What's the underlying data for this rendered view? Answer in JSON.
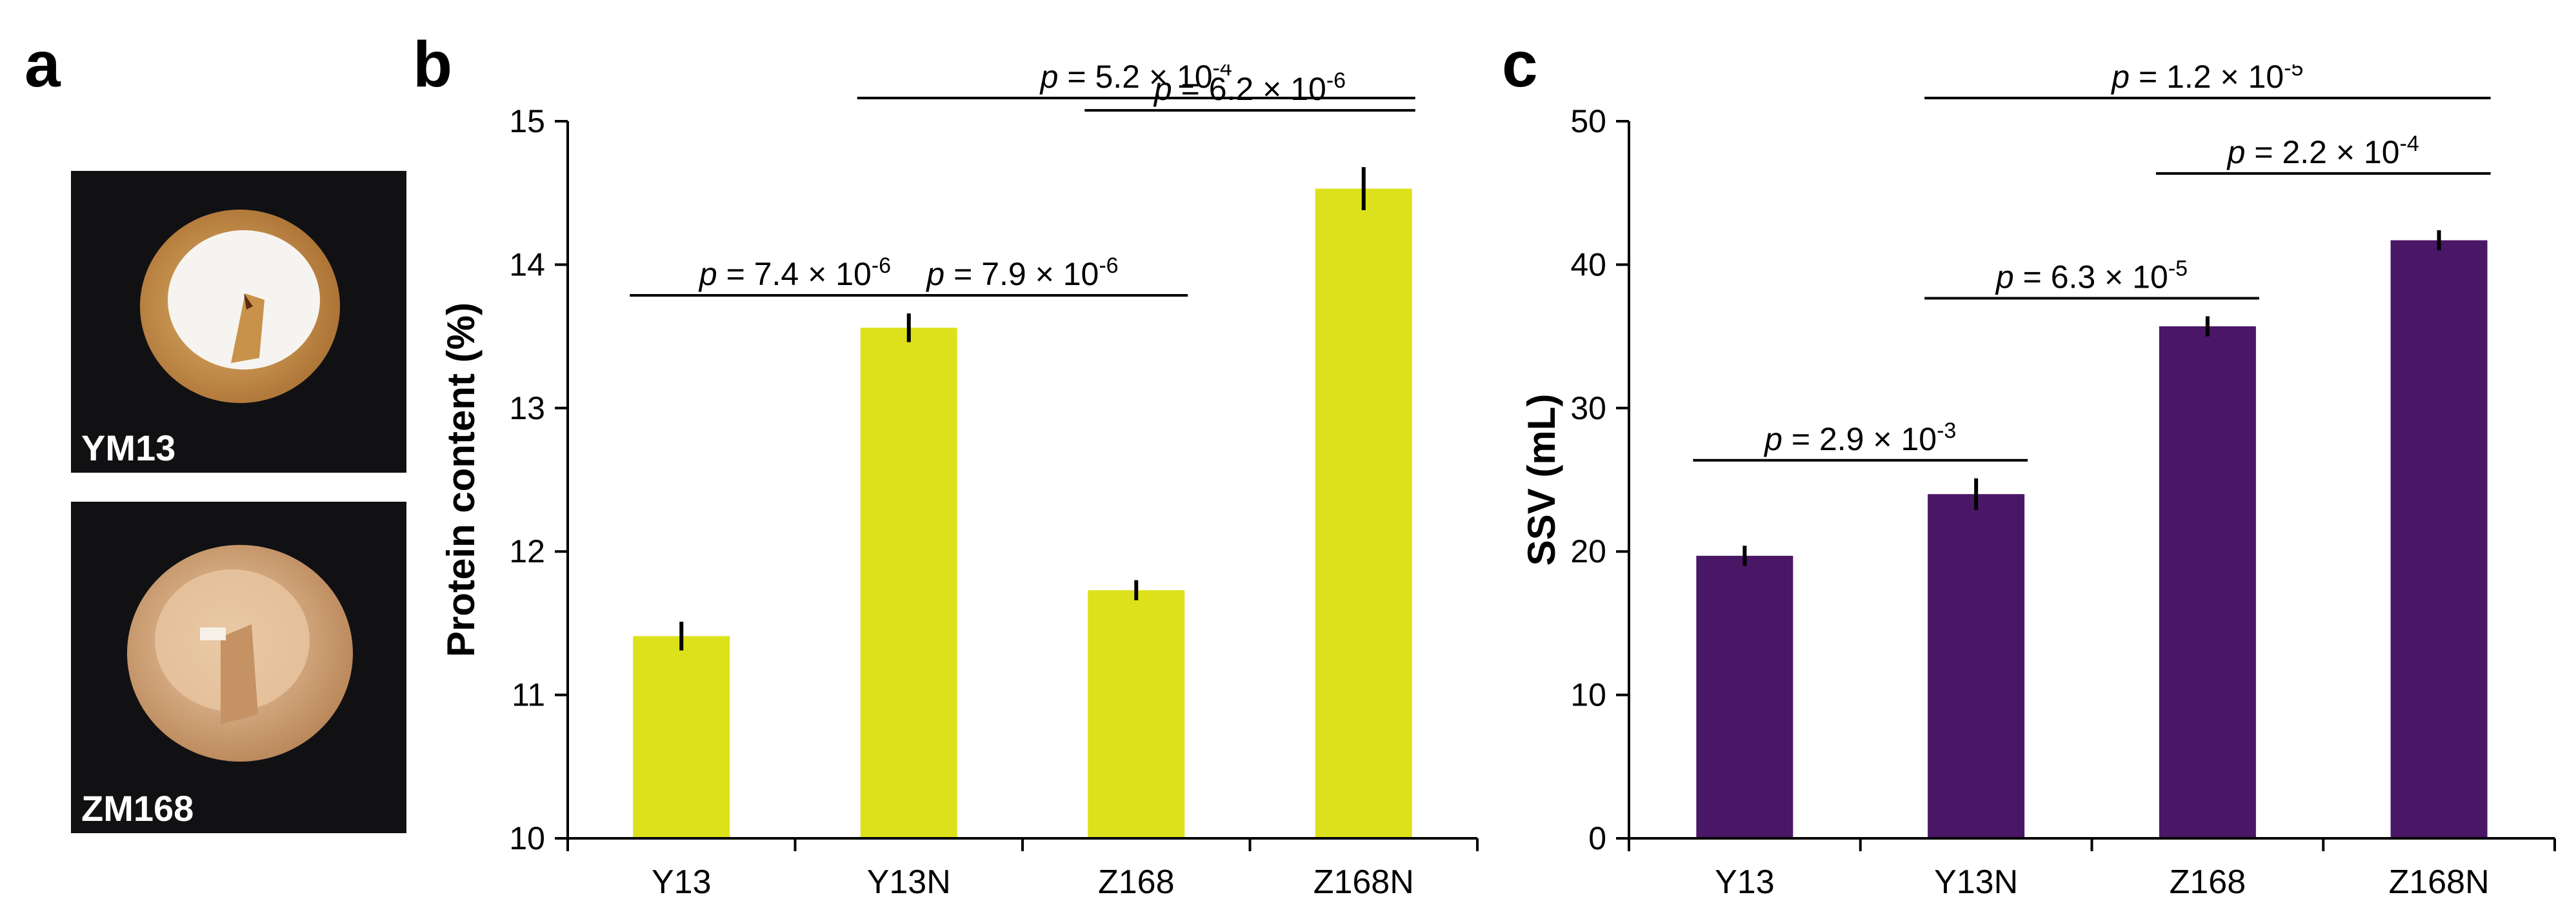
{
  "panels": {
    "a": {
      "letter": "a",
      "photos": [
        {
          "label": "YM13",
          "kernel_color": "#c8924a",
          "endosperm_color": "#f4f2ee"
        },
        {
          "label": "ZM168",
          "kernel_color": "#d6ad82",
          "endosperm_color": "#e7c9a6"
        }
      ]
    },
    "b": {
      "letter": "b"
    },
    "c": {
      "letter": "c"
    }
  },
  "chart_data": [
    {
      "id": "b",
      "type": "bar",
      "categories": [
        "Y13",
        "Y13N",
        "Z168",
        "Z168N"
      ],
      "values": [
        11.41,
        13.56,
        11.73,
        14.53
      ],
      "errors": [
        0.1,
        0.1,
        0.07,
        0.15
      ],
      "ylabel": "Protein content (%)",
      "ylim": [
        10,
        15
      ],
      "yticks": [
        10,
        11,
        12,
        13,
        14,
        15
      ],
      "bar_color": "#dde11b",
      "comparisons": [
        {
          "from": 0,
          "to": 1,
          "level": 0,
          "text": "p = 7.4 × 10",
          "p": "p",
          "base": " = 7.4 × 10",
          "exp": "-6"
        },
        {
          "from": 1,
          "to": 2,
          "level": 0,
          "text": "p = 7.9 × 10",
          "p": "p",
          "base": " = 7.9 × 10",
          "exp": "-6"
        },
        {
          "from": 2,
          "to": 3,
          "level": 1,
          "text": "p = 6.2 × 10",
          "p": "p",
          "base": " = 6.2 × 10",
          "exp": "-6"
        },
        {
          "from": 1,
          "to": 3,
          "level": 2,
          "text": "p = 5.2 × 10",
          "p": "p",
          "base": " = 5.2 × 10",
          "exp": "-4"
        }
      ]
    },
    {
      "id": "c",
      "type": "bar",
      "categories": [
        "Y13",
        "Y13N",
        "Z168",
        "Z168N"
      ],
      "values": [
        19.7,
        24.0,
        35.7,
        41.7
      ],
      "errors": [
        0.7,
        1.1,
        0.7,
        0.7
      ],
      "ylabel": "SSV (mL)",
      "ylim": [
        0,
        50
      ],
      "yticks": [
        0,
        10,
        20,
        30,
        40,
        50
      ],
      "bar_color": "#4a1766",
      "comparisons": [
        {
          "from": 0,
          "to": 1,
          "level": 0,
          "text": "p = 2.9 × 10",
          "p": "p",
          "base": " = 2.9 × 10",
          "exp": "-3"
        },
        {
          "from": 1,
          "to": 2,
          "level": 0,
          "text": "p = 6.3 × 10",
          "p": "p",
          "base": " = 6.3 × 10",
          "exp": "-5"
        },
        {
          "from": 2,
          "to": 3,
          "level": 1,
          "text": "p = 2.2 × 10",
          "p": "p",
          "base": " = 2.2 × 10",
          "exp": "-4"
        },
        {
          "from": 1,
          "to": 3,
          "level": 2,
          "text": "p = 1.2 × 10",
          "p": "p",
          "base": " = 1.2 × 10",
          "exp": "-5"
        }
      ]
    }
  ]
}
